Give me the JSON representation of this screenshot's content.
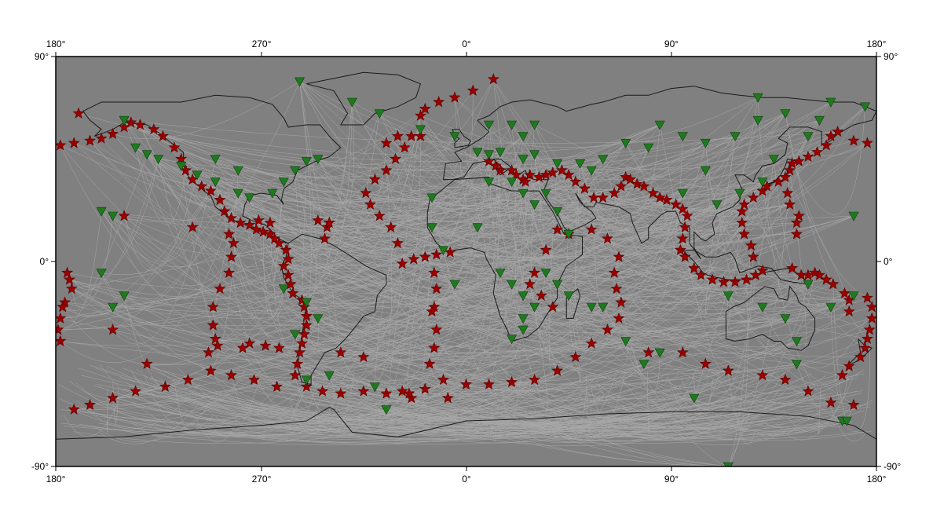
{
  "map": {
    "projection": "equirectangular",
    "center_longitude": 0,
    "background_color": "#808080",
    "coast_color": "#1a1a1a",
    "path_color": "#c8c8c8",
    "event_color": "#990000",
    "station_color": "#1f7a1f",
    "event_symbol": "star",
    "station_symbol": "inverted-triangle"
  },
  "axes": {
    "top": [
      "180°",
      "270°",
      "0°",
      "90°",
      "180°"
    ],
    "bottom": [
      "180°",
      "270°",
      "0°",
      "90°",
      "180°"
    ],
    "left": [
      "90°",
      "0°",
      "-90°"
    ],
    "right": [
      "90°",
      "0°",
      "-90°"
    ]
  },
  "events": [
    [
      -175,
      -5
    ],
    [
      -173,
      -12
    ],
    [
      -176,
      -18
    ],
    [
      -178,
      -25
    ],
    [
      -179,
      -30
    ],
    [
      -178,
      -35
    ],
    [
      -177,
      -20
    ],
    [
      -174,
      -8
    ],
    [
      -178,
      51
    ],
    [
      -172,
      52
    ],
    [
      -165,
      53
    ],
    [
      -160,
      54
    ],
    [
      -155,
      56
    ],
    [
      -150,
      59
    ],
    [
      -147,
      61
    ],
    [
      -143,
      60
    ],
    [
      -137,
      58
    ],
    [
      -133,
      55
    ],
    [
      -128,
      50
    ],
    [
      -125,
      45
    ],
    [
      -123,
      40
    ],
    [
      -120,
      36
    ],
    [
      -116,
      33
    ],
    [
      -112,
      31
    ],
    [
      -108,
      27
    ],
    [
      -106,
      22
    ],
    [
      -103,
      19
    ],
    [
      -99,
      17
    ],
    [
      -95,
      16
    ],
    [
      -92,
      14
    ],
    [
      -89,
      13
    ],
    [
      -86,
      12
    ],
    [
      -84,
      10
    ],
    [
      -82,
      8
    ],
    [
      -79,
      5
    ],
    [
      -78,
      1
    ],
    [
      -80,
      -2
    ],
    [
      -78,
      -6
    ],
    [
      -77,
      -10
    ],
    [
      -76,
      -14
    ],
    [
      -72,
      -17
    ],
    [
      -71,
      -20
    ],
    [
      -70,
      -24
    ],
    [
      -70,
      -28
    ],
    [
      -71,
      -32
    ],
    [
      -72,
      -36
    ],
    [
      -73,
      -40
    ],
    [
      -74,
      -45
    ],
    [
      -75,
      -50
    ],
    [
      -70,
      -55
    ],
    [
      -63,
      -57
    ],
    [
      -55,
      -58
    ],
    [
      -45,
      -57
    ],
    [
      -35,
      -58
    ],
    [
      -28,
      -57
    ],
    [
      -24,
      -60
    ],
    [
      -18,
      -56
    ],
    [
      -83,
      -55
    ],
    [
      -93,
      -52
    ],
    [
      -103,
      -50
    ],
    [
      -112,
      -48
    ],
    [
      -122,
      -52
    ],
    [
      -132,
      -55
    ],
    [
      -145,
      -57
    ],
    [
      -155,
      -60
    ],
    [
      -165,
      -63
    ],
    [
      -172,
      -65
    ],
    [
      -110,
      -34
    ],
    [
      -111,
      -28
    ],
    [
      -111,
      -20
    ],
    [
      -108,
      -12
    ],
    [
      -104,
      -5
    ],
    [
      -103,
      2
    ],
    [
      -102,
      8
    ],
    [
      -104,
      12
    ],
    [
      -109,
      -37
    ],
    [
      -113,
      -40
    ],
    [
      -95,
      -36
    ],
    [
      -88,
      -37
    ],
    [
      -82,
      -38
    ],
    [
      -98,
      -38
    ],
    [
      -91,
      18
    ],
    [
      -86,
      17
    ],
    [
      -65,
      18
    ],
    [
      -61,
      15
    ],
    [
      -62,
      10
    ],
    [
      -60,
      17
    ],
    [
      -28,
      -1
    ],
    [
      -23,
      1
    ],
    [
      -18,
      2
    ],
    [
      -13,
      3
    ],
    [
      -7,
      4
    ],
    [
      -30,
      8
    ],
    [
      -33,
      15
    ],
    [
      -38,
      20
    ],
    [
      -42,
      25
    ],
    [
      -44,
      30
    ],
    [
      -40,
      36
    ],
    [
      -35,
      40
    ],
    [
      -31,
      45
    ],
    [
      -27,
      50
    ],
    [
      -30,
      55
    ],
    [
      -20,
      64
    ],
    [
      -18,
      67
    ],
    [
      -12,
      70
    ],
    [
      -5,
      72
    ],
    [
      3,
      75
    ],
    [
      12,
      80
    ],
    [
      -20,
      55
    ],
    [
      -24,
      55
    ],
    [
      -35,
      52
    ],
    [
      -14,
      -5
    ],
    [
      -13,
      -12
    ],
    [
      -14,
      -20
    ],
    [
      -13,
      -30
    ],
    [
      -14,
      -38
    ],
    [
      -16,
      -45
    ],
    [
      -10,
      -52
    ],
    [
      0,
      -54
    ],
    [
      10,
      -54
    ],
    [
      20,
      -53
    ],
    [
      30,
      -52
    ],
    [
      40,
      -48
    ],
    [
      48,
      -42
    ],
    [
      55,
      -36
    ],
    [
      62,
      -30
    ],
    [
      67,
      -25
    ],
    [
      68,
      -18
    ],
    [
      66,
      -12
    ],
    [
      65,
      -5
    ],
    [
      67,
      2
    ],
    [
      62,
      10
    ],
    [
      55,
      14
    ],
    [
      25,
      36
    ],
    [
      28,
      38
    ],
    [
      32,
      37
    ],
    [
      35,
      38
    ],
    [
      38,
      39
    ],
    [
      42,
      40
    ],
    [
      45,
      38
    ],
    [
      48,
      35
    ],
    [
      52,
      32
    ],
    [
      56,
      28
    ],
    [
      60,
      28
    ],
    [
      65,
      30
    ],
    [
      68,
      33
    ],
    [
      70,
      37
    ],
    [
      72,
      36
    ],
    [
      75,
      34
    ],
    [
      78,
      33
    ],
    [
      82,
      30
    ],
    [
      85,
      28
    ],
    [
      88,
      27
    ],
    [
      92,
      25
    ],
    [
      95,
      23
    ],
    [
      97,
      20
    ],
    [
      96,
      15
    ],
    [
      95,
      10
    ],
    [
      94,
      5
    ],
    [
      96,
      2
    ],
    [
      100,
      -3
    ],
    [
      103,
      -6
    ],
    [
      108,
      -8
    ],
    [
      113,
      -9
    ],
    [
      118,
      -9
    ],
    [
      123,
      -8
    ],
    [
      127,
      -6
    ],
    [
      130,
      -4
    ],
    [
      126,
      2
    ],
    [
      125,
      7
    ],
    [
      122,
      12
    ],
    [
      121,
      17
    ],
    [
      121,
      22
    ],
    [
      122,
      25
    ],
    [
      126,
      28
    ],
    [
      130,
      31
    ],
    [
      132,
      33
    ],
    [
      137,
      35
    ],
    [
      140,
      37
    ],
    [
      142,
      40
    ],
    [
      143,
      43
    ],
    [
      146,
      44
    ],
    [
      150,
      46
    ],
    [
      154,
      48
    ],
    [
      158,
      51
    ],
    [
      160,
      55
    ],
    [
      163,
      57
    ],
    [
      170,
      53
    ],
    [
      176,
      52
    ],
    [
      10,
      44
    ],
    [
      13,
      42
    ],
    [
      15,
      40
    ],
    [
      20,
      40
    ],
    [
      22,
      38
    ],
    [
      26,
      35
    ],
    [
      143,
      -3
    ],
    [
      147,
      -6
    ],
    [
      150,
      -6
    ],
    [
      153,
      -5
    ],
    [
      155,
      -6
    ],
    [
      158,
      -8
    ],
    [
      161,
      -10
    ],
    [
      166,
      -14
    ],
    [
      168,
      -17
    ],
    [
      168,
      -22
    ],
    [
      176,
      -16
    ],
    [
      178,
      -20
    ],
    [
      178,
      -25
    ],
    [
      177,
      -30
    ],
    [
      176,
      -34
    ],
    [
      175,
      -38
    ],
    [
      173,
      -42
    ],
    [
      168,
      -46
    ],
    [
      165,
      -50
    ],
    [
      145,
      12
    ],
    [
      145,
      17
    ],
    [
      146,
      20
    ],
    [
      142,
      25
    ],
    [
      141,
      30
    ],
    [
      80,
      -40
    ],
    [
      95,
      -40
    ],
    [
      105,
      -45
    ],
    [
      115,
      -48
    ],
    [
      130,
      -50
    ],
    [
      140,
      -52
    ],
    [
      150,
      -57
    ],
    [
      160,
      -62
    ],
    [
      170,
      -63
    ],
    [
      45,
      12
    ],
    [
      40,
      14
    ],
    [
      35,
      5
    ],
    [
      30,
      -5
    ],
    [
      28,
      -10
    ],
    [
      33,
      -15
    ],
    [
      38,
      -20
    ],
    [
      -15,
      -22
    ],
    [
      -8,
      -60
    ],
    [
      -25,
      -58
    ],
    [
      -45,
      -42
    ],
    [
      -55,
      -40
    ],
    [
      -120,
      15
    ],
    [
      -150,
      20
    ],
    [
      -155,
      -30
    ],
    [
      -140,
      -45
    ],
    [
      -170,
      65
    ]
  ],
  "stations": [
    [
      -73,
      79
    ],
    [
      -50,
      70
    ],
    [
      -38,
      65
    ],
    [
      -20,
      58
    ],
    [
      -5,
      55
    ],
    [
      10,
      60
    ],
    [
      20,
      60
    ],
    [
      25,
      55
    ],
    [
      30,
      60
    ],
    [
      5,
      48
    ],
    [
      10,
      47
    ],
    [
      15,
      48
    ],
    [
      25,
      45
    ],
    [
      30,
      47
    ],
    [
      40,
      43
    ],
    [
      50,
      43
    ],
    [
      55,
      40
    ],
    [
      60,
      45
    ],
    [
      70,
      52
    ],
    [
      80,
      50
    ],
    [
      85,
      60
    ],
    [
      95,
      55
    ],
    [
      105,
      52
    ],
    [
      118,
      55
    ],
    [
      128,
      62
    ],
    [
      128,
      72
    ],
    [
      140,
      65
    ],
    [
      155,
      62
    ],
    [
      160,
      70
    ],
    [
      175,
      68
    ],
    [
      -150,
      62
    ],
    [
      -145,
      50
    ],
    [
      -140,
      47
    ],
    [
      -135,
      45
    ],
    [
      -125,
      42
    ],
    [
      -118,
      38
    ],
    [
      -110,
      35
    ],
    [
      -100,
      30
    ],
    [
      -95,
      28
    ],
    [
      -85,
      30
    ],
    [
      -80,
      35
    ],
    [
      -75,
      40
    ],
    [
      -70,
      44
    ],
    [
      -65,
      45
    ],
    [
      -100,
      40
    ],
    [
      -110,
      45
    ],
    [
      -160,
      22
    ],
    [
      -155,
      20
    ],
    [
      -160,
      -5
    ],
    [
      -155,
      -20
    ],
    [
      -150,
      -15
    ],
    [
      -80,
      -12
    ],
    [
      -70,
      -18
    ],
    [
      -75,
      -32
    ],
    [
      -65,
      -25
    ],
    [
      -70,
      -52
    ],
    [
      -60,
      -50
    ],
    [
      -40,
      -55
    ],
    [
      -35,
      -65
    ],
    [
      -15,
      28
    ],
    [
      -15,
      15
    ],
    [
      -10,
      5
    ],
    [
      -5,
      -10
    ],
    [
      5,
      15
    ],
    [
      10,
      35
    ],
    [
      20,
      35
    ],
    [
      25,
      30
    ],
    [
      30,
      25
    ],
    [
      35,
      30
    ],
    [
      40,
      22
    ],
    [
      45,
      12
    ],
    [
      15,
      -5
    ],
    [
      20,
      -10
    ],
    [
      25,
      -15
    ],
    [
      30,
      -20
    ],
    [
      25,
      -25
    ],
    [
      25,
      -30
    ],
    [
      20,
      -34
    ],
    [
      35,
      -5
    ],
    [
      40,
      -10
    ],
    [
      45,
      -15
    ],
    [
      55,
      -20
    ],
    [
      60,
      -20
    ],
    [
      70,
      -35
    ],
    [
      78,
      -45
    ],
    [
      85,
      -40
    ],
    [
      100,
      -60
    ],
    [
      115,
      -15
    ],
    [
      130,
      -20
    ],
    [
      140,
      -25
    ],
    [
      145,
      -35
    ],
    [
      145,
      -45
    ],
    [
      150,
      -10
    ],
    [
      160,
      -20
    ],
    [
      165,
      -70
    ],
    [
      167,
      -70
    ],
    [
      170,
      20
    ],
    [
      170,
      -15
    ],
    [
      115,
      -90
    ],
    [
      95,
      30
    ],
    [
      105,
      40
    ],
    [
      110,
      25
    ],
    [
      120,
      30
    ],
    [
      130,
      35
    ],
    [
      135,
      45
    ],
    [
      150,
      55
    ]
  ]
}
